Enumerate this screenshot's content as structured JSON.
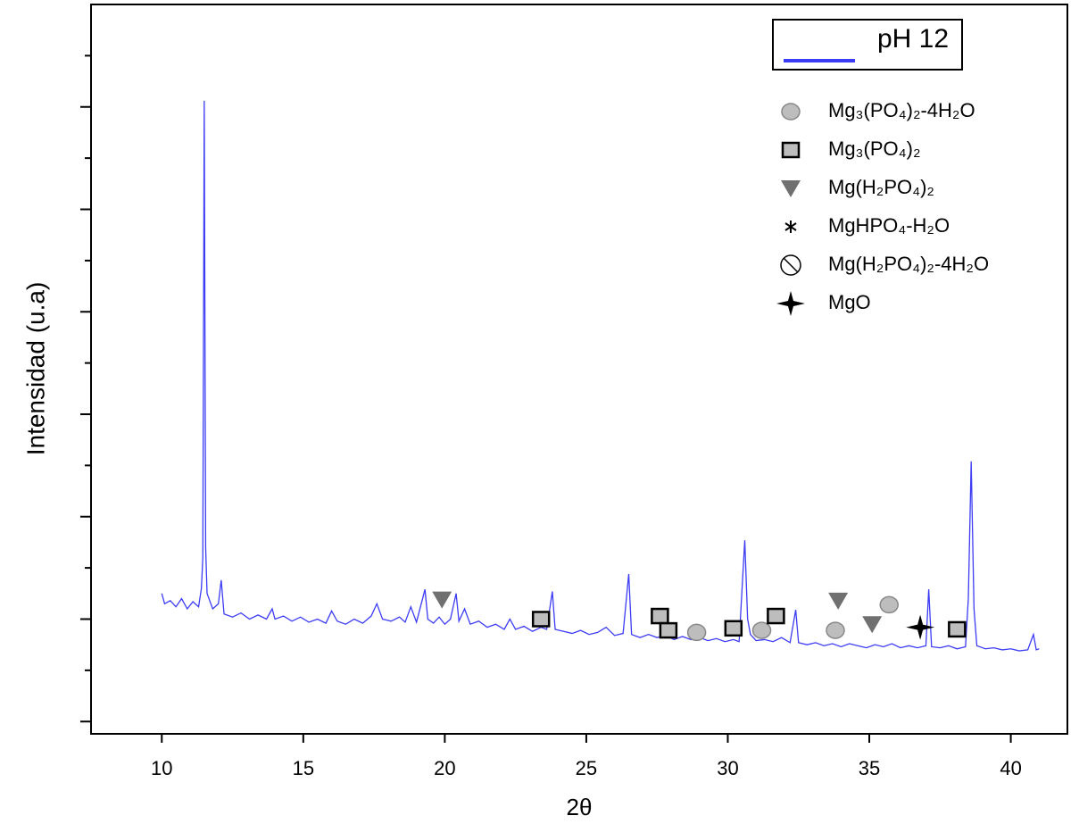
{
  "chart_data": {
    "type": "line",
    "x_label": "2θ",
    "y_label": "Intensidad (u.a)",
    "xlim": [
      7.5,
      42
    ],
    "ylim": [
      -0.12,
      7.0
    ],
    "xticks": [
      10,
      15,
      20,
      25,
      30,
      35,
      40
    ],
    "yticks": [
      0,
      1,
      2,
      3,
      4,
      5,
      6
    ],
    "yminorticks": [
      0.5,
      1.5,
      2.5,
      3.5,
      4.5,
      5.5,
      6.5
    ],
    "x": [
      10.0,
      10.1,
      10.3,
      10.5,
      10.7,
      10.9,
      11.1,
      11.3,
      11.4,
      11.45,
      11.5,
      11.55,
      11.6,
      11.8,
      12.0,
      12.1,
      12.2,
      12.5,
      12.8,
      13.1,
      13.4,
      13.7,
      13.9,
      14.0,
      14.3,
      14.6,
      14.9,
      15.2,
      15.5,
      15.8,
      16.0,
      16.2,
      16.5,
      16.8,
      17.1,
      17.4,
      17.6,
      17.8,
      18.1,
      18.4,
      18.6,
      18.8,
      19.0,
      19.3,
      19.4,
      19.6,
      19.8,
      20.0,
      20.2,
      20.4,
      20.5,
      20.7,
      20.9,
      21.2,
      21.5,
      21.8,
      22.1,
      22.3,
      22.5,
      22.8,
      23.1,
      23.4,
      23.6,
      23.8,
      23.9,
      24.2,
      24.5,
      24.8,
      25.1,
      25.4,
      25.7,
      26.0,
      26.3,
      26.5,
      26.6,
      26.9,
      27.2,
      27.5,
      27.8,
      28.1,
      28.4,
      28.7,
      29.0,
      29.3,
      29.6,
      29.9,
      30.2,
      30.4,
      30.6,
      30.7,
      30.8,
      31.0,
      31.3,
      31.6,
      31.9,
      32.2,
      32.4,
      32.5,
      32.8,
      33.1,
      33.4,
      33.7,
      34.0,
      34.3,
      34.6,
      34.9,
      35.2,
      35.5,
      35.8,
      36.1,
      36.4,
      36.7,
      37.0,
      37.1,
      37.2,
      37.5,
      37.8,
      38.1,
      38.4,
      38.5,
      38.6,
      38.7,
      38.8,
      39.1,
      39.4,
      39.7,
      40.0,
      40.3,
      40.6,
      40.8,
      40.9,
      41.0
    ],
    "series": [
      {
        "name": "pH 12",
        "color": "#3c3cf5",
        "values": [
          1.25,
          1.15,
          1.18,
          1.12,
          1.2,
          1.1,
          1.17,
          1.12,
          1.3,
          1.6,
          6.06,
          1.7,
          1.25,
          1.1,
          1.15,
          1.38,
          1.05,
          1.02,
          1.06,
          1.0,
          1.04,
          1.0,
          1.1,
          1.0,
          1.03,
          0.98,
          1.02,
          0.97,
          1.0,
          0.96,
          1.08,
          0.98,
          0.95,
          1.0,
          0.96,
          1.03,
          1.15,
          1.0,
          0.98,
          1.02,
          0.97,
          1.12,
          0.97,
          1.29,
          1.0,
          0.96,
          1.02,
          0.95,
          1.0,
          1.25,
          0.98,
          1.1,
          0.95,
          0.98,
          0.92,
          0.95,
          0.9,
          1.0,
          0.9,
          0.93,
          0.88,
          0.92,
          0.9,
          1.27,
          0.9,
          0.88,
          0.86,
          0.89,
          0.85,
          0.87,
          0.92,
          0.84,
          0.86,
          1.44,
          0.85,
          0.82,
          0.85,
          0.82,
          0.84,
          0.8,
          0.83,
          0.8,
          0.82,
          0.79,
          0.81,
          0.78,
          0.8,
          0.78,
          1.77,
          1.0,
          0.85,
          0.79,
          0.8,
          0.78,
          0.82,
          0.77,
          1.09,
          0.77,
          0.75,
          0.77,
          0.74,
          0.76,
          0.73,
          0.76,
          0.74,
          0.72,
          0.75,
          0.73,
          0.76,
          0.72,
          0.74,
          0.72,
          0.74,
          1.29,
          0.73,
          0.72,
          0.74,
          0.71,
          0.73,
          1.2,
          2.54,
          1.1,
          0.74,
          0.71,
          0.72,
          0.7,
          0.71,
          0.69,
          0.7,
          0.85,
          0.7,
          0.71
        ]
      }
    ],
    "markers": [
      {
        "name": "Mg₃(PO₄)₂-4H₂O",
        "shape": "circle",
        "color": "#bdbdbd",
        "x": [
          28.9,
          31.2,
          33.8,
          35.7
        ],
        "y": [
          0.87,
          0.89,
          0.89,
          1.14
        ]
      },
      {
        "name": "Mg₃(PO₄)₂",
        "shape": "square",
        "color": "#bdbdbd",
        "x": [
          23.4,
          27.6,
          27.9,
          30.2,
          31.7,
          38.1
        ],
        "y": [
          1.0,
          1.03,
          0.89,
          0.91,
          1.03,
          0.9
        ]
      },
      {
        "name": "Mg(H₂PO₄)₂",
        "shape": "triangle",
        "color": "#707070",
        "x": [
          19.9,
          33.9,
          35.1
        ],
        "y": [
          1.19,
          1.18,
          0.95
        ]
      },
      {
        "name": "MgHPO₄-H₂O",
        "shape": "asterisk",
        "color": "#000000"
      },
      {
        "name": "Mg(H₂PO₄)₂-4H₂O",
        "shape": "slashed-circle",
        "color": "#000000"
      },
      {
        "name": "MgO",
        "shape": "sparkle",
        "color": "#000000",
        "x": [
          36.8
        ],
        "y": [
          0.92
        ]
      }
    ]
  }
}
